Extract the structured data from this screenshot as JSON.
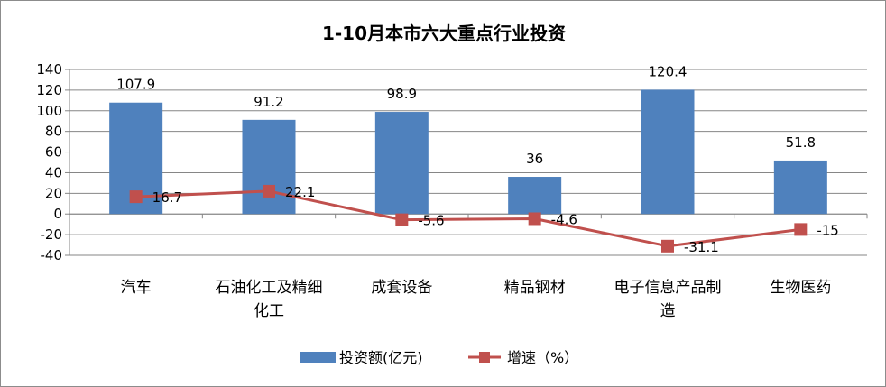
{
  "chart_data": {
    "type": "bar",
    "title": "1-10月本市六大重点行业投资",
    "categories": [
      [
        "汽车"
      ],
      [
        "石油化工及精细",
        "化工"
      ],
      [
        "成套设备"
      ],
      [
        "精品钢材"
      ],
      [
        "电子信息产品制",
        "造"
      ],
      [
        "生物医药"
      ]
    ],
    "series": [
      {
        "name": "投资额(亿元)",
        "kind": "bar",
        "color": "#4f81bd",
        "values": [
          107.9,
          91.2,
          98.9,
          36,
          120.4,
          51.8
        ],
        "labels": [
          "107.9",
          "91.2",
          "98.9",
          "36",
          "120.4",
          "51.8"
        ]
      },
      {
        "name": "增速（%）",
        "kind": "line",
        "color": "#c0504d",
        "values": [
          16.7,
          22.1,
          -5.6,
          -4.6,
          -31.1,
          -15
        ],
        "labels": [
          "16.7",
          "22.1",
          "-5.6",
          "-4.6",
          "-31.1",
          "-15"
        ]
      }
    ],
    "ylim": [
      -40,
      140
    ],
    "yticks": [
      -40,
      -20,
      0,
      20,
      40,
      60,
      80,
      100,
      120,
      140
    ],
    "grid": true,
    "legend": "bottom"
  }
}
